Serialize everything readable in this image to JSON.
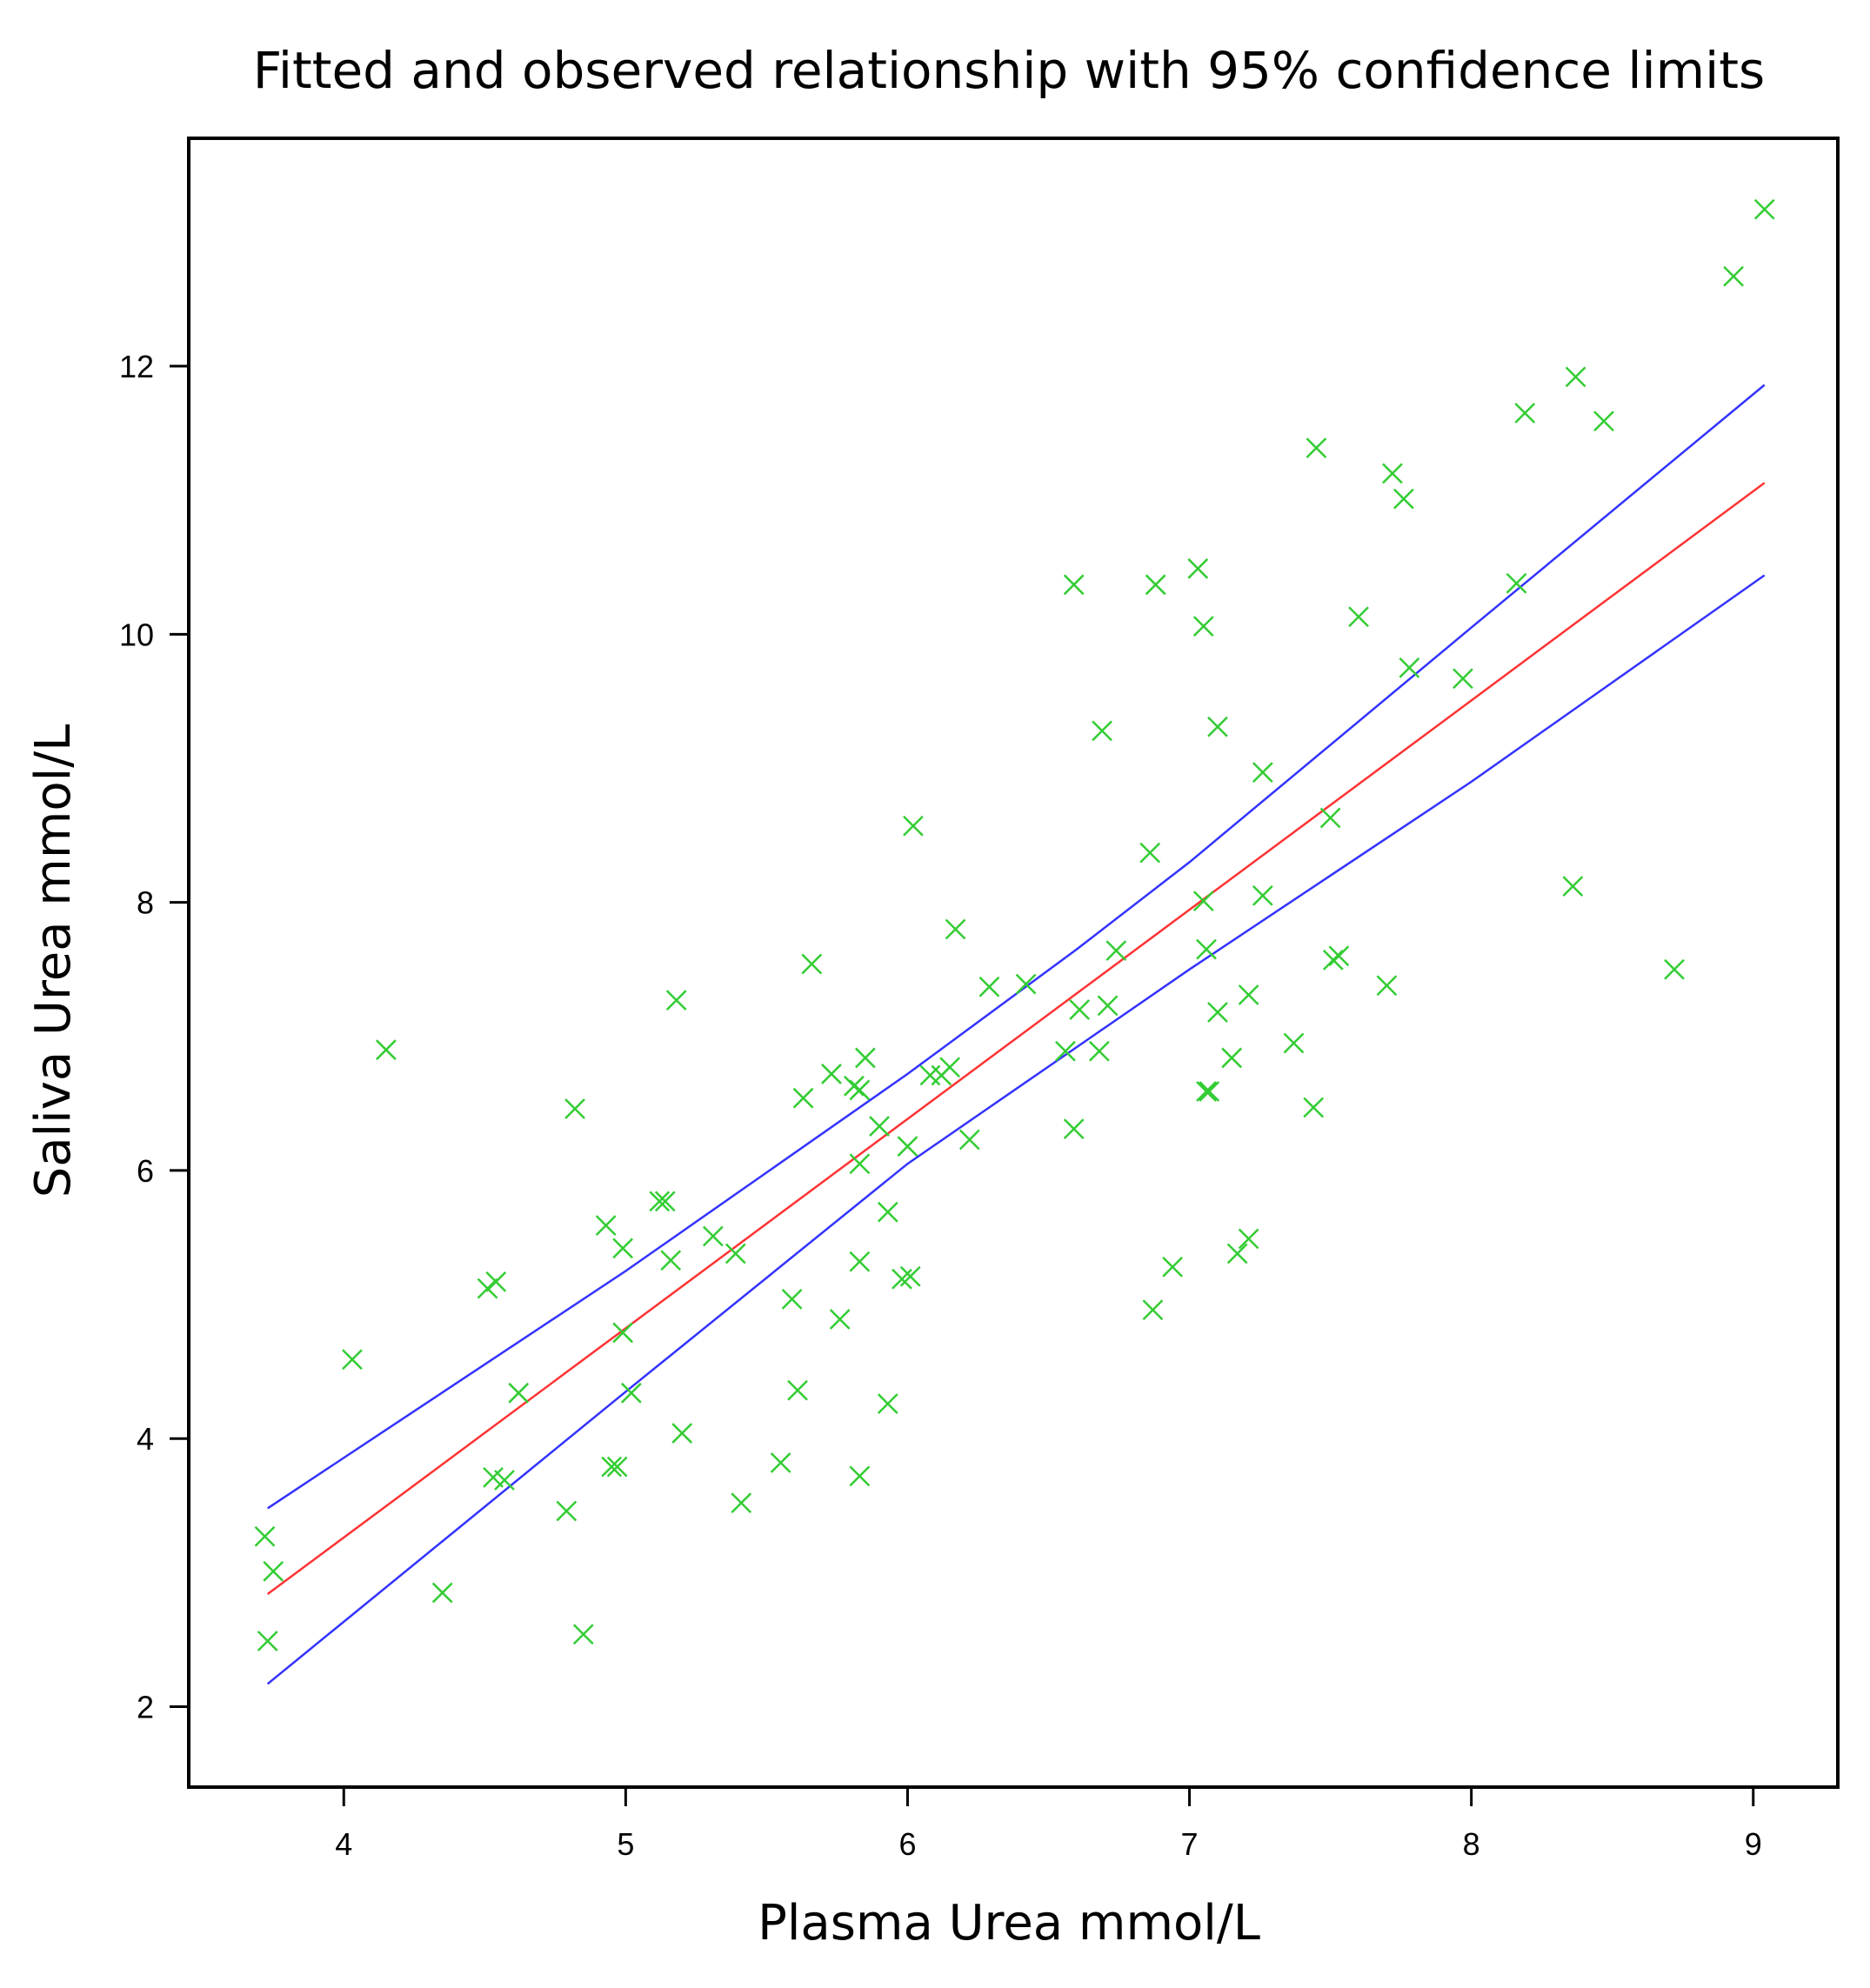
{
  "chart_data": {
    "type": "scatter",
    "title": "Fitted and observed relationship with 95% confidence limits",
    "xlabel": "Plasma Urea mmol/L",
    "ylabel": "Saliva Urea mmol/L",
    "xlim": [
      3.45,
      9.3
    ],
    "ylim": [
      1.4,
      13.7
    ],
    "xticks": [
      "4",
      "5",
      "6",
      "7",
      "8",
      "9"
    ],
    "yticks": [
      "2",
      "4",
      "6",
      "8",
      "10",
      "12"
    ],
    "grid": false,
    "legend": "none",
    "colors": {
      "points": "#33cc33",
      "fit": "#ff3333",
      "confidence": "#3333ff"
    },
    "series": [
      {
        "name": "Observed",
        "kind": "scatter",
        "points": [
          [
            3.72,
            3.27
          ],
          [
            3.73,
            2.49
          ],
          [
            3.75,
            3.01
          ],
          [
            4.03,
            4.59
          ],
          [
            4.15,
            6.9
          ],
          [
            4.35,
            2.85
          ],
          [
            4.51,
            5.12
          ],
          [
            4.54,
            5.17
          ],
          [
            4.53,
            3.71
          ],
          [
            4.57,
            3.69
          ],
          [
            4.62,
            4.34
          ],
          [
            4.79,
            3.46
          ],
          [
            4.82,
            6.46
          ],
          [
            4.85,
            2.54
          ],
          [
            4.93,
            5.59
          ],
          [
            4.95,
            3.79
          ],
          [
            4.97,
            3.79
          ],
          [
            4.99,
            5.42
          ],
          [
            4.99,
            4.79
          ],
          [
            5.02,
            4.34
          ],
          [
            5.12,
            5.77
          ],
          [
            5.14,
            5.77
          ],
          [
            5.16,
            5.33
          ],
          [
            5.18,
            7.27
          ],
          [
            5.2,
            4.04
          ],
          [
            5.31,
            5.51
          ],
          [
            5.39,
            5.38
          ],
          [
            5.41,
            3.52
          ],
          [
            5.55,
            3.82
          ],
          [
            5.59,
            5.04
          ],
          [
            5.61,
            4.36
          ],
          [
            5.63,
            6.54
          ],
          [
            5.66,
            7.54
          ],
          [
            5.73,
            6.72
          ],
          [
            5.76,
            4.89
          ],
          [
            5.81,
            6.63
          ],
          [
            5.83,
            6.05
          ],
          [
            5.83,
            6.6
          ],
          [
            5.83,
            5.32
          ],
          [
            5.83,
            3.72
          ],
          [
            5.85,
            6.84
          ],
          [
            5.9,
            6.33
          ],
          [
            5.93,
            5.69
          ],
          [
            5.93,
            4.26
          ],
          [
            5.98,
            5.19
          ],
          [
            6.0,
            6.18
          ],
          [
            6.01,
            5.21
          ],
          [
            6.02,
            8.57
          ],
          [
            6.08,
            6.71
          ],
          [
            6.12,
            6.71
          ],
          [
            6.15,
            6.77
          ],
          [
            6.17,
            7.8
          ],
          [
            6.22,
            6.23
          ],
          [
            6.29,
            7.37
          ],
          [
            6.42,
            7.39
          ],
          [
            6.56,
            6.89
          ],
          [
            6.59,
            6.31
          ],
          [
            6.59,
            10.37
          ],
          [
            6.61,
            7.2
          ],
          [
            6.68,
            6.89
          ],
          [
            6.69,
            9.28
          ],
          [
            6.71,
            7.23
          ],
          [
            6.74,
            7.64
          ],
          [
            6.86,
            8.37
          ],
          [
            6.87,
            4.96
          ],
          [
            6.88,
            10.37
          ],
          [
            6.94,
            5.28
          ],
          [
            7.03,
            10.49
          ],
          [
            7.05,
            10.06
          ],
          [
            7.05,
            8.01
          ],
          [
            7.06,
            7.65
          ],
          [
            7.06,
            6.59
          ],
          [
            7.07,
            6.59
          ],
          [
            7.1,
            9.31
          ],
          [
            7.1,
            7.18
          ],
          [
            7.15,
            6.84
          ],
          [
            7.17,
            5.38
          ],
          [
            7.21,
            7.31
          ],
          [
            7.21,
            5.49
          ],
          [
            7.26,
            8.97
          ],
          [
            7.26,
            8.05
          ],
          [
            7.37,
            6.95
          ],
          [
            7.44,
            6.47
          ],
          [
            7.45,
            11.39
          ],
          [
            7.5,
            8.63
          ],
          [
            7.51,
            7.57
          ],
          [
            7.53,
            7.6
          ],
          [
            7.6,
            10.13
          ],
          [
            7.7,
            7.38
          ],
          [
            7.72,
            11.2
          ],
          [
            7.76,
            11.01
          ],
          [
            7.78,
            9.75
          ],
          [
            7.97,
            9.67
          ],
          [
            8.16,
            10.38
          ],
          [
            8.19,
            11.65
          ],
          [
            8.36,
            8.12
          ],
          [
            8.37,
            11.92
          ],
          [
            8.47,
            11.59
          ],
          [
            8.72,
            7.5
          ],
          [
            8.93,
            12.67
          ],
          [
            9.04,
            13.17
          ]
        ]
      },
      {
        "name": "Fitted",
        "kind": "line",
        "points": [
          [
            3.73,
            2.84
          ],
          [
            9.04,
            11.13
          ]
        ]
      },
      {
        "name": "Upper 95% CL",
        "kind": "line",
        "points": [
          [
            3.73,
            3.48
          ],
          [
            5.0,
            5.25
          ],
          [
            6.0,
            6.72
          ],
          [
            6.6,
            7.65
          ],
          [
            7.0,
            8.3
          ],
          [
            8.0,
            10.05
          ],
          [
            9.04,
            11.86
          ]
        ]
      },
      {
        "name": "Lower 95% CL",
        "kind": "line",
        "points": [
          [
            3.73,
            2.17
          ],
          [
            5.0,
            4.35
          ],
          [
            6.0,
            6.05
          ],
          [
            6.6,
            6.92
          ],
          [
            7.0,
            7.5
          ],
          [
            8.0,
            8.9
          ],
          [
            9.04,
            10.44
          ]
        ]
      }
    ]
  }
}
